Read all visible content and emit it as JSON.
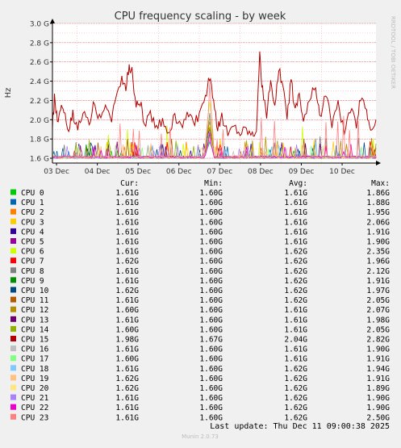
{
  "chart_data": {
    "type": "line",
    "title": "CPU frequency scaling - by week",
    "ylabel": "Hz",
    "side_label": "RRDTOOL / TOBI OETIKER",
    "y_ticks": [
      {
        "value": 1.6,
        "label": "1.6 G"
      },
      {
        "value": 1.8,
        "label": "1.8 G"
      },
      {
        "value": 2.0,
        "label": "2.0 G"
      },
      {
        "value": 2.2,
        "label": "2.2 G"
      },
      {
        "value": 2.4,
        "label": "2.4 G"
      },
      {
        "value": 2.6,
        "label": "2.6 G"
      },
      {
        "value": 2.8,
        "label": "2.8 G"
      },
      {
        "value": 3.0,
        "label": "3.0 G"
      }
    ],
    "ylim": [
      1.55,
      3.0
    ],
    "x_ticks": [
      "03 Dec",
      "04 Dec",
      "05 Dec",
      "06 Dec",
      "07 Dec",
      "08 Dec",
      "09 Dec",
      "10 Dec"
    ],
    "x_span_days": 7.93,
    "grid": true,
    "highlight_series": "CPU 15",
    "highlight_profile": [
      {
        "day": 0.0,
        "value": 1.95
      },
      {
        "day": 0.05,
        "value": 2.22
      },
      {
        "day": 0.12,
        "value": 1.97
      },
      {
        "day": 0.2,
        "value": 2.12
      },
      {
        "day": 0.28,
        "value": 2.05
      },
      {
        "day": 0.4,
        "value": 1.9
      },
      {
        "day": 0.5,
        "value": 2.05
      },
      {
        "day": 0.62,
        "value": 1.9
      },
      {
        "day": 0.75,
        "value": 2.1
      },
      {
        "day": 0.9,
        "value": 1.93
      },
      {
        "day": 1.0,
        "value": 2.15
      },
      {
        "day": 1.15,
        "value": 2.0
      },
      {
        "day": 1.3,
        "value": 2.2
      },
      {
        "day": 1.45,
        "value": 1.98
      },
      {
        "day": 1.55,
        "value": 2.25
      },
      {
        "day": 1.7,
        "value": 2.4
      },
      {
        "day": 1.8,
        "value": 2.35
      },
      {
        "day": 1.88,
        "value": 2.55
      },
      {
        "day": 1.95,
        "value": 2.5
      },
      {
        "day": 2.05,
        "value": 2.15
      },
      {
        "day": 2.15,
        "value": 2.2
      },
      {
        "day": 2.25,
        "value": 1.95
      },
      {
        "day": 2.4,
        "value": 2.05
      },
      {
        "day": 2.55,
        "value": 1.9
      },
      {
        "day": 2.7,
        "value": 2.0
      },
      {
        "day": 2.85,
        "value": 1.88
      },
      {
        "day": 3.0,
        "value": 2.02
      },
      {
        "day": 3.15,
        "value": 1.92
      },
      {
        "day": 3.3,
        "value": 2.08
      },
      {
        "day": 3.45,
        "value": 1.95
      },
      {
        "day": 3.6,
        "value": 2.05
      },
      {
        "day": 3.75,
        "value": 2.2
      },
      {
        "day": 3.85,
        "value": 2.45
      },
      {
        "day": 3.95,
        "value": 2.15
      },
      {
        "day": 4.05,
        "value": 1.9
      },
      {
        "day": 4.15,
        "value": 2.05
      },
      {
        "day": 4.3,
        "value": 1.85
      },
      {
        "day": 4.45,
        "value": 1.95
      },
      {
        "day": 4.6,
        "value": 1.88
      },
      {
        "day": 4.75,
        "value": 1.92
      },
      {
        "day": 4.9,
        "value": 1.85
      },
      {
        "day": 5.0,
        "value": 1.93
      },
      {
        "day": 5.08,
        "value": 2.65
      },
      {
        "day": 5.15,
        "value": 2.3
      },
      {
        "day": 5.25,
        "value": 2.05
      },
      {
        "day": 5.35,
        "value": 2.4
      },
      {
        "day": 5.45,
        "value": 2.1
      },
      {
        "day": 5.55,
        "value": 2.55
      },
      {
        "day": 5.65,
        "value": 2.3
      },
      {
        "day": 5.75,
        "value": 2.05
      },
      {
        "day": 5.85,
        "value": 2.4
      },
      {
        "day": 5.95,
        "value": 2.1
      },
      {
        "day": 6.05,
        "value": 2.3
      },
      {
        "day": 6.15,
        "value": 2.0
      },
      {
        "day": 6.3,
        "value": 2.2
      },
      {
        "day": 6.45,
        "value": 2.38
      },
      {
        "day": 6.55,
        "value": 2.0
      },
      {
        "day": 6.7,
        "value": 2.3
      },
      {
        "day": 6.85,
        "value": 1.95
      },
      {
        "day": 7.0,
        "value": 2.15
      },
      {
        "day": 7.15,
        "value": 1.9
      },
      {
        "day": 7.3,
        "value": 2.1
      },
      {
        "day": 7.45,
        "value": 1.95
      },
      {
        "day": 7.55,
        "value": 2.25
      },
      {
        "day": 7.7,
        "value": 2.05
      },
      {
        "day": 7.8,
        "value": 1.92
      },
      {
        "day": 7.93,
        "value": 2.0
      }
    ],
    "spike_day": 3.85,
    "columns": [
      "",
      "Cur:",
      "Min:",
      "Avg:",
      "Max:"
    ],
    "series": [
      {
        "name": "CPU 0",
        "color": "#00cc00",
        "cur": "1.61G",
        "min": "1.60G",
        "avg": "1.61G",
        "max": "1.86G"
      },
      {
        "name": "CPU 1",
        "color": "#0066b3",
        "cur": "1.61G",
        "min": "1.60G",
        "avg": "1.61G",
        "max": "1.88G"
      },
      {
        "name": "CPU 2",
        "color": "#ff8000",
        "cur": "1.61G",
        "min": "1.60G",
        "avg": "1.61G",
        "max": "1.95G"
      },
      {
        "name": "CPU 3",
        "color": "#ffcc00",
        "cur": "1.61G",
        "min": "1.60G",
        "avg": "1.61G",
        "max": "2.06G"
      },
      {
        "name": "CPU 4",
        "color": "#330099",
        "cur": "1.61G",
        "min": "1.60G",
        "avg": "1.61G",
        "max": "1.91G"
      },
      {
        "name": "CPU 5",
        "color": "#990099",
        "cur": "1.61G",
        "min": "1.60G",
        "avg": "1.61G",
        "max": "1.90G"
      },
      {
        "name": "CPU 6",
        "color": "#ccff00",
        "cur": "1.61G",
        "min": "1.60G",
        "avg": "1.62G",
        "max": "2.35G"
      },
      {
        "name": "CPU 7",
        "color": "#ff0000",
        "cur": "1.62G",
        "min": "1.60G",
        "avg": "1.62G",
        "max": "1.96G"
      },
      {
        "name": "CPU 8",
        "color": "#808080",
        "cur": "1.61G",
        "min": "1.60G",
        "avg": "1.62G",
        "max": "2.12G"
      },
      {
        "name": "CPU 9",
        "color": "#008f00",
        "cur": "1.61G",
        "min": "1.60G",
        "avg": "1.62G",
        "max": "1.91G"
      },
      {
        "name": "CPU 10",
        "color": "#00487d",
        "cur": "1.62G",
        "min": "1.60G",
        "avg": "1.62G",
        "max": "1.97G"
      },
      {
        "name": "CPU 11",
        "color": "#b35a00",
        "cur": "1.61G",
        "min": "1.60G",
        "avg": "1.62G",
        "max": "2.05G"
      },
      {
        "name": "CPU 12",
        "color": "#b38f00",
        "cur": "1.60G",
        "min": "1.60G",
        "avg": "1.61G",
        "max": "2.07G"
      },
      {
        "name": "CPU 13",
        "color": "#6b006b",
        "cur": "1.61G",
        "min": "1.60G",
        "avg": "1.61G",
        "max": "1.98G"
      },
      {
        "name": "CPU 14",
        "color": "#8fb300",
        "cur": "1.60G",
        "min": "1.60G",
        "avg": "1.61G",
        "max": "2.05G"
      },
      {
        "name": "CPU 15",
        "color": "#b30000",
        "cur": "1.98G",
        "min": "1.67G",
        "avg": "2.04G",
        "max": "2.82G"
      },
      {
        "name": "CPU 16",
        "color": "#bebebe",
        "cur": "1.61G",
        "min": "1.60G",
        "avg": "1.61G",
        "max": "1.90G"
      },
      {
        "name": "CPU 17",
        "color": "#80ff80",
        "cur": "1.60G",
        "min": "1.60G",
        "avg": "1.61G",
        "max": "1.91G"
      },
      {
        "name": "CPU 18",
        "color": "#80c9ff",
        "cur": "1.61G",
        "min": "1.60G",
        "avg": "1.62G",
        "max": "1.94G"
      },
      {
        "name": "CPU 19",
        "color": "#ffc080",
        "cur": "1.62G",
        "min": "1.60G",
        "avg": "1.62G",
        "max": "1.91G"
      },
      {
        "name": "CPU 20",
        "color": "#ffe680",
        "cur": "1.62G",
        "min": "1.60G",
        "avg": "1.62G",
        "max": "1.89G"
      },
      {
        "name": "CPU 21",
        "color": "#aa80ff",
        "cur": "1.61G",
        "min": "1.60G",
        "avg": "1.62G",
        "max": "1.90G"
      },
      {
        "name": "CPU 22",
        "color": "#ee00cc",
        "cur": "1.61G",
        "min": "1.60G",
        "avg": "1.62G",
        "max": "1.90G"
      },
      {
        "name": "CPU 23",
        "color": "#ff8080",
        "cur": "1.61G",
        "min": "1.60G",
        "avg": "1.62G",
        "max": "2.50G"
      }
    ]
  },
  "footer": {
    "last_update": "Last update: Thu Dec 11 09:00:38 2025",
    "version": "Munin 2.0.73"
  }
}
